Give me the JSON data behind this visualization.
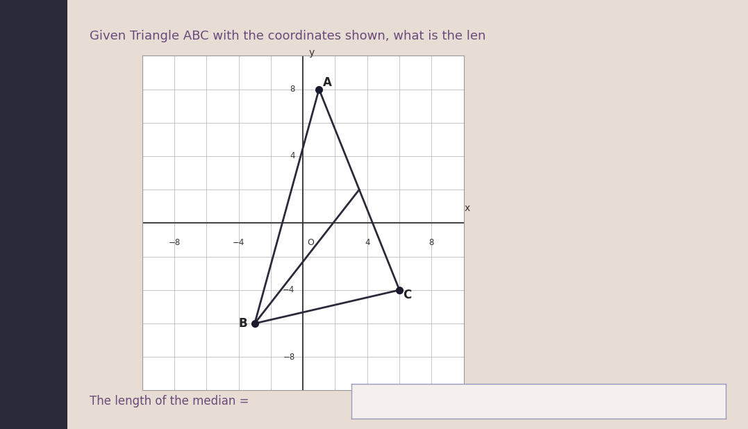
{
  "title": "Given Triangle ABC with the coordinates shown, what is the len",
  "A": [
    1,
    8
  ],
  "B": [
    -3,
    -6
  ],
  "C": [
    6,
    -4
  ],
  "xlim": [
    -10,
    10
  ],
  "ylim": [
    -10,
    10
  ],
  "xtick_vals": [
    -8,
    -4,
    4,
    8
  ],
  "ytick_vals": [
    -8,
    -4,
    4,
    8
  ],
  "grid_color": "#bbbbbb",
  "triangle_color": "#2a2a3a",
  "median_color": "#2a2a3a",
  "point_color": "#1a1a2e",
  "left_panel_color": "#2a2a3a",
  "bg_color": "#e8ddd4",
  "plot_bg": "#ffffff",
  "answer_label": "The length of the median =",
  "title_color": "#6a4a7a",
  "label_color": "#6a4a7a",
  "answer_fontsize": 12
}
